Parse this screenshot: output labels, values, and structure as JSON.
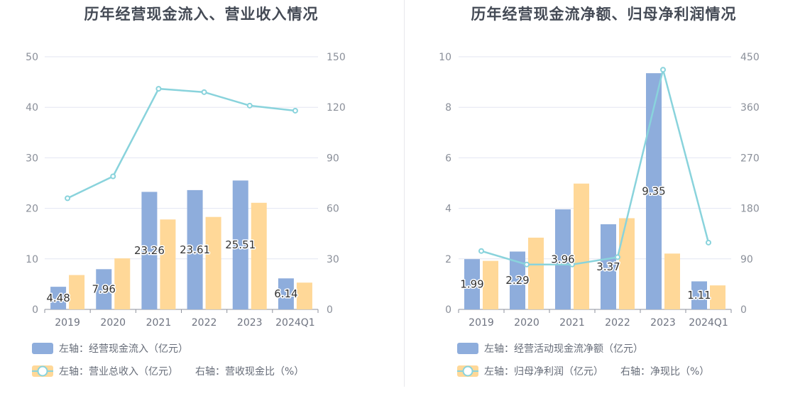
{
  "colors": {
    "bar_primary": "#8eaddc",
    "bar_secondary": "#ffd898",
    "line": "#89d3dc",
    "grid": "#e3e6f2",
    "axis": "#8e929c"
  },
  "chart_data": [
    {
      "type": "bar+line",
      "title": "历年经营现金流入、营业收入情况",
      "categories": [
        "2019",
        "2020",
        "2021",
        "2022",
        "2023",
        "2024Q1"
      ],
      "left_axis": {
        "range": [
          0,
          50
        ],
        "ticks": [
          "0",
          "10",
          "20",
          "30",
          "40",
          "50"
        ]
      },
      "right_axis": {
        "range": [
          0,
          150
        ],
        "ticks": [
          "0",
          "30",
          "60",
          "90",
          "120",
          "150"
        ]
      },
      "series": [
        {
          "name": "经营现金流入",
          "axis": "left",
          "kind": "bar",
          "values": [
            4.48,
            7.96,
            23.26,
            23.61,
            25.51,
            6.14
          ],
          "labels": [
            "4.48",
            "7.96",
            "23.26",
            "23.61",
            "25.51",
            "6.14"
          ],
          "legend": "左轴：经营现金流入（亿元）"
        },
        {
          "name": "营业总收入",
          "axis": "left",
          "kind": "bar",
          "values": [
            6.8,
            10.1,
            17.8,
            18.3,
            21.1,
            5.3
          ],
          "legend": "左轴：营业总收入（亿元）"
        },
        {
          "name": "营收现金比",
          "axis": "right",
          "kind": "line",
          "values": [
            66,
            79,
            131,
            129,
            121,
            118
          ],
          "legend": "右轴：营收现金比（%）"
        }
      ]
    },
    {
      "type": "bar+line",
      "title": "历年经营现金流净额、归母净利润情况",
      "categories": [
        "2019",
        "2020",
        "2021",
        "2022",
        "2023",
        "2024Q1"
      ],
      "left_axis": {
        "range": [
          0,
          10
        ],
        "ticks": [
          "0",
          "2",
          "4",
          "6",
          "8",
          "10"
        ]
      },
      "right_axis": {
        "range": [
          0,
          450
        ],
        "ticks": [
          "0",
          "90",
          "180",
          "270",
          "360",
          "450"
        ]
      },
      "series": [
        {
          "name": "经营活动现金流净额",
          "axis": "left",
          "kind": "bar",
          "values": [
            1.99,
            2.29,
            3.96,
            3.37,
            9.35,
            1.11
          ],
          "labels": [
            "1.99",
            "2.29",
            "3.96",
            "3.37",
            "9.35",
            "1.11"
          ],
          "legend": "左轴：经营活动现金流净额（亿元）"
        },
        {
          "name": "归母净利润",
          "axis": "left",
          "kind": "bar",
          "values": [
            1.92,
            2.84,
            4.98,
            3.61,
            2.21,
            0.95
          ],
          "legend": "左轴：归母净利润（亿元）"
        },
        {
          "name": "净现比",
          "axis": "right",
          "kind": "line",
          "values": [
            104,
            80,
            80,
            93,
            427,
            119
          ],
          "legend": "右轴：净现比（%）"
        }
      ]
    }
  ]
}
